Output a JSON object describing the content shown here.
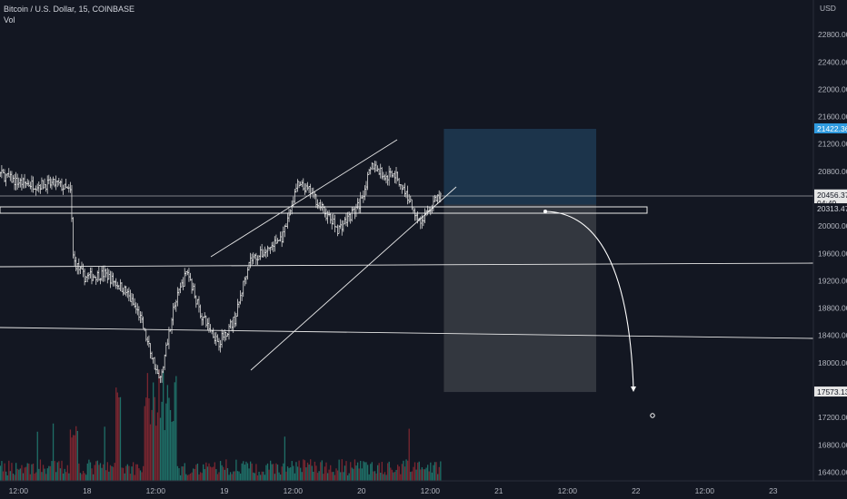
{
  "legend": {
    "symbol_line": "Bitcoin / U.S. Dollar, 15, COINBASE",
    "volume_label": "Vol"
  },
  "colors": {
    "background": "#131722",
    "bar": "#d8d8d8",
    "grid_text": "#b2b5be",
    "current_price_badge": "#e6e6e6",
    "target_badge": "#2f9be0",
    "volume_up": "#1f6f67",
    "volume_down": "#7a2630",
    "trendline": "#e8e8e8",
    "position_target_zone": "#1e3a52",
    "position_stop_zone": "#3a3d44"
  },
  "chart_data": {
    "type": "ohlc",
    "title": "Bitcoin / U.S. Dollar, 15, COINBASE",
    "currency": "USD",
    "ylim": [
      16300,
      23200
    ],
    "y_ticks": [
      16400,
      16800,
      17200,
      17600,
      18000,
      18400,
      18800,
      19200,
      19600,
      20000,
      20400,
      20800,
      21200,
      21600,
      22000,
      22400,
      22800
    ],
    "x_ticks": [
      "12:00",
      "18",
      "12:00",
      "19",
      "12:00",
      "20",
      "12:00",
      "21",
      "12:00",
      "22",
      "12:00",
      "23"
    ],
    "price_path": [
      {
        "t": 0,
        "p": 21100
      },
      {
        "t": 0.15,
        "p": 20800
      },
      {
        "t": 0.3,
        "p": 20650
      },
      {
        "t": 0.45,
        "p": 20600
      },
      {
        "t": 0.6,
        "p": 20620
      },
      {
        "t": 0.7,
        "p": 20500
      },
      {
        "t": 0.72,
        "p": 19500
      },
      {
        "t": 0.8,
        "p": 19250
      },
      {
        "t": 0.95,
        "p": 19300
      },
      {
        "t": 1.1,
        "p": 19050
      },
      {
        "t": 1.2,
        "p": 18700
      },
      {
        "t": 1.35,
        "p": 17720
      },
      {
        "t": 1.45,
        "p": 18800
      },
      {
        "t": 1.55,
        "p": 19350
      },
      {
        "t": 1.65,
        "p": 18700
      },
      {
        "t": 1.78,
        "p": 18300
      },
      {
        "t": 1.9,
        "p": 18650
      },
      {
        "t": 2.0,
        "p": 19500
      },
      {
        "t": 2.1,
        "p": 19600
      },
      {
        "t": 2.25,
        "p": 19850
      },
      {
        "t": 2.35,
        "p": 20600
      },
      {
        "t": 2.45,
        "p": 20500
      },
      {
        "t": 2.55,
        "p": 20200
      },
      {
        "t": 2.65,
        "p": 19950
      },
      {
        "t": 2.8,
        "p": 20300
      },
      {
        "t": 2.9,
        "p": 20900
      },
      {
        "t": 3.0,
        "p": 20700
      },
      {
        "t": 3.05,
        "p": 20800
      },
      {
        "t": 3.15,
        "p": 20450
      },
      {
        "t": 3.25,
        "p": 20050
      },
      {
        "t": 3.35,
        "p": 20350
      },
      {
        "t": 3.4,
        "p": 20450
      }
    ],
    "current_price": "20456.37",
    "countdown": "04:49",
    "level_label": "20313.47",
    "target_price": "17573.13",
    "position_top_price": "21422.36",
    "volume_note": "volume histogram beneath price bars"
  }
}
